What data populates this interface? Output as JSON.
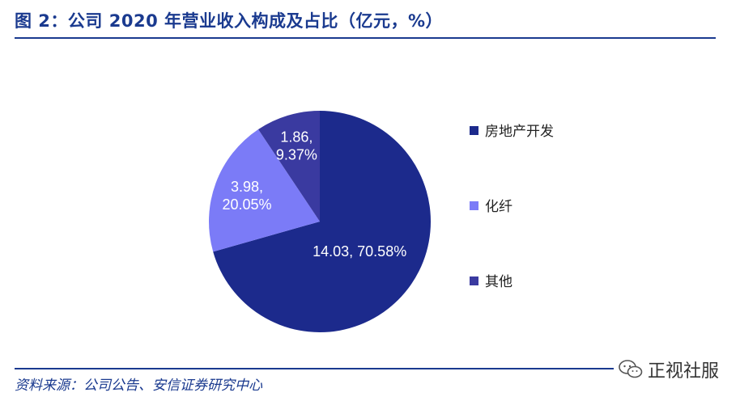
{
  "page": {
    "title": "图 2：公司 2020 年营业收入构成及占比（亿元，%）",
    "source": "资料来源：公司公告、安信证券研究中心",
    "watermark": "正视社服"
  },
  "colors": {
    "title": "#1a3a8f",
    "rule": "#1a3a8f",
    "slice_1": "#1c2a8c",
    "slice_2": "#7b7bf7",
    "slice_3": "#3a3aa0"
  },
  "chart_data": {
    "type": "pie",
    "start_angle": 90,
    "direction": "clockwise",
    "categories": [
      "房地产开发",
      "化纤",
      "其他"
    ],
    "values": [
      14.03,
      3.98,
      1.86
    ],
    "percents": [
      70.58,
      20.05,
      9.37
    ],
    "data_labels": [
      "14.03, 70.58%",
      "3.98, 20.05%",
      "1.86, 9.37%"
    ],
    "legend": {
      "position": "right",
      "entries": [
        "房地产开发",
        "化纤",
        "其他"
      ]
    }
  }
}
